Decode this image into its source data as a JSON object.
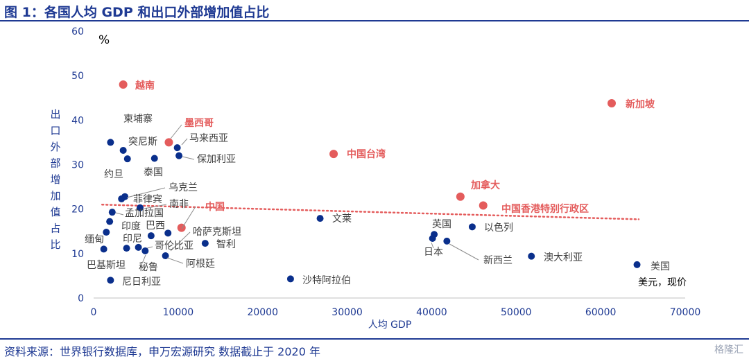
{
  "title": "图 1：各国人均 GDP 和出口外部增加值占比",
  "source": "资料来源：世界银行数据库，申万宏源研究 数据截止于 2020 年",
  "watermark": "格隆汇",
  "colors": {
    "blue": "#0a2f8c",
    "red": "#e45c5c",
    "text": "#404040",
    "title": "#1f3a93",
    "trend": "#e45c5c"
  },
  "chart_data": {
    "type": "scatter",
    "title": "图 1：各国人均 GDP 和出口外部增加值占比",
    "xlabel": "人均 GDP",
    "ylabel": "出口外部增加值占比",
    "y_unit": "%",
    "x_unit": "美元，现价",
    "xlim": [
      0,
      70000
    ],
    "ylim": [
      0,
      60
    ],
    "x_ticks": [
      0,
      10000,
      20000,
      30000,
      40000,
      50000,
      60000,
      70000
    ],
    "y_ticks": [
      0,
      10,
      20,
      30,
      40,
      50,
      60
    ],
    "grid": false,
    "trendline": {
      "style": "dotted",
      "x": [
        1000,
        64500
      ],
      "y": [
        21,
        17.7
      ]
    },
    "points": [
      {
        "label": "越南",
        "x": 3500,
        "y": 48,
        "highlight": true
      },
      {
        "label": "新加坡",
        "x": 61300,
        "y": 43.8,
        "highlight": true
      },
      {
        "label": "墨西哥",
        "x": 8900,
        "y": 35,
        "highlight": true
      },
      {
        "label": "中国台湾",
        "x": 28400,
        "y": 32.4,
        "highlight": true
      },
      {
        "label": "加拿大",
        "x": 43400,
        "y": 22.8,
        "highlight": true
      },
      {
        "label": "中国香港特别行政区",
        "x": 46100,
        "y": 20.8,
        "highlight": true
      },
      {
        "label": "中国",
        "x": 10400,
        "y": 15.8,
        "highlight": true
      },
      {
        "label": "柬埔寨",
        "x": 2000,
        "y": 35,
        "highlight": false
      },
      {
        "label": "突尼斯",
        "x": 3500,
        "y": 33.2,
        "highlight": false
      },
      {
        "label": "约旦",
        "x": 4000,
        "y": 31.3,
        "highlight": false
      },
      {
        "label": "泰国",
        "x": 7200,
        "y": 31.4,
        "highlight": false
      },
      {
        "label": "马来西亚",
        "x": 9900,
        "y": 33.8,
        "highlight": false
      },
      {
        "label": "保加利亚",
        "x": 10100,
        "y": 32,
        "highlight": false
      },
      {
        "label": "乌克兰",
        "x": 3700,
        "y": 22.8,
        "highlight": false
      },
      {
        "label": "菲律宾",
        "x": 3300,
        "y": 22.3,
        "highlight": false
      },
      {
        "label": "南非",
        "x": 5500,
        "y": 20.3,
        "highlight": false
      },
      {
        "label": "孟加拉国",
        "x": 2200,
        "y": 19.3,
        "highlight": false
      },
      {
        "label": "印度",
        "x": 1900,
        "y": 17.2,
        "highlight": false
      },
      {
        "label": "巴西",
        "x": 6800,
        "y": 14,
        "highlight": false
      },
      {
        "label": "哈萨克斯坦",
        "x": 8800,
        "y": 14.6,
        "highlight": false
      },
      {
        "label": "缅甸",
        "x": 1500,
        "y": 14.8,
        "highlight": false
      },
      {
        "label": "印尼",
        "x": 3900,
        "y": 11.2,
        "highlight": false
      },
      {
        "label": "哥伦比亚",
        "x": 5300,
        "y": 11.4,
        "highlight": false
      },
      {
        "label": "智利",
        "x": 13200,
        "y": 12.3,
        "highlight": false
      },
      {
        "label": "巴基斯坦",
        "x": 1200,
        "y": 11,
        "highlight": false
      },
      {
        "label": "秘鲁",
        "x": 6100,
        "y": 10.6,
        "highlight": false
      },
      {
        "label": "阿根廷",
        "x": 8500,
        "y": 9.5,
        "highlight": false
      },
      {
        "label": "尼日利亚",
        "x": 2000,
        "y": 4,
        "highlight": false
      },
      {
        "label": "沙特阿拉伯",
        "x": 23300,
        "y": 4.3,
        "highlight": false
      },
      {
        "label": "文莱",
        "x": 26800,
        "y": 17.9,
        "highlight": false
      },
      {
        "label": "英国",
        "x": 40300,
        "y": 14.3,
        "highlight": false
      },
      {
        "label": "日本",
        "x": 40100,
        "y": 13.4,
        "highlight": false
      },
      {
        "label": "新西兰",
        "x": 41800,
        "y": 12.8,
        "highlight": false
      },
      {
        "label": "以色列",
        "x": 44800,
        "y": 16,
        "highlight": false
      },
      {
        "label": "澳大利亚",
        "x": 51800,
        "y": 9.4,
        "highlight": false
      },
      {
        "label": "美国",
        "x": 64300,
        "y": 7.5,
        "highlight": false
      }
    ]
  }
}
